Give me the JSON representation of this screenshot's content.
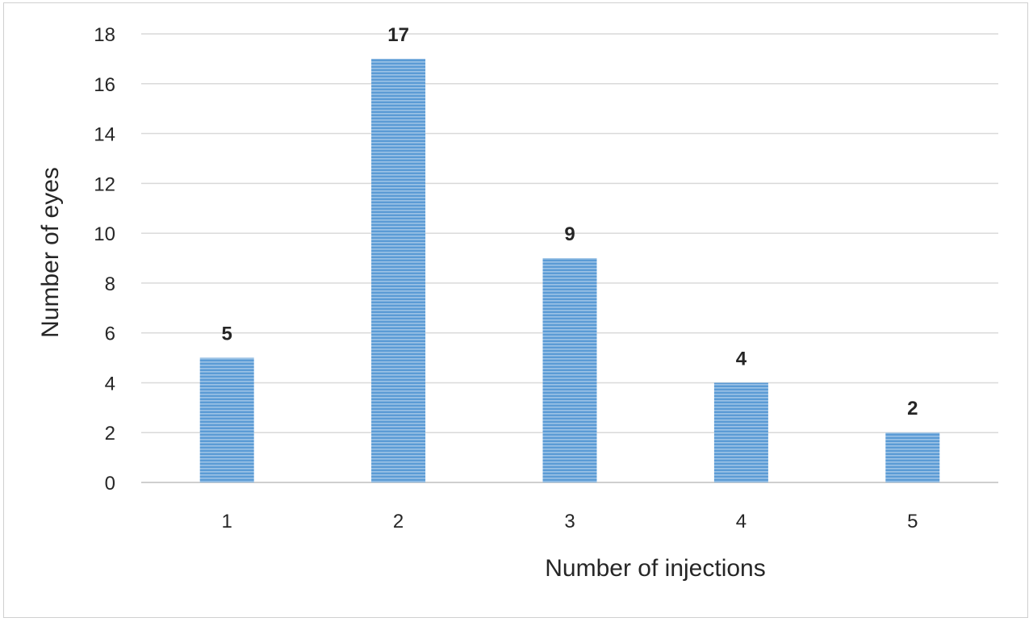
{
  "chart_data": {
    "type": "bar",
    "categories": [
      "1",
      "2",
      "3",
      "4",
      "5"
    ],
    "values": [
      5,
      17,
      9,
      4,
      2
    ],
    "data_labels": [
      "5",
      "17",
      "9",
      "4",
      "2"
    ],
    "title": "",
    "xlabel": "Number of injections",
    "ylabel": "Number of eyes",
    "ylim": [
      0,
      18
    ],
    "yticks": [
      0,
      2,
      4,
      6,
      8,
      10,
      12,
      14,
      16,
      18
    ],
    "grid": true,
    "legend": "none",
    "bar_color": "#5b9bd5",
    "bar_stripe_color": "#9dc3e6"
  }
}
